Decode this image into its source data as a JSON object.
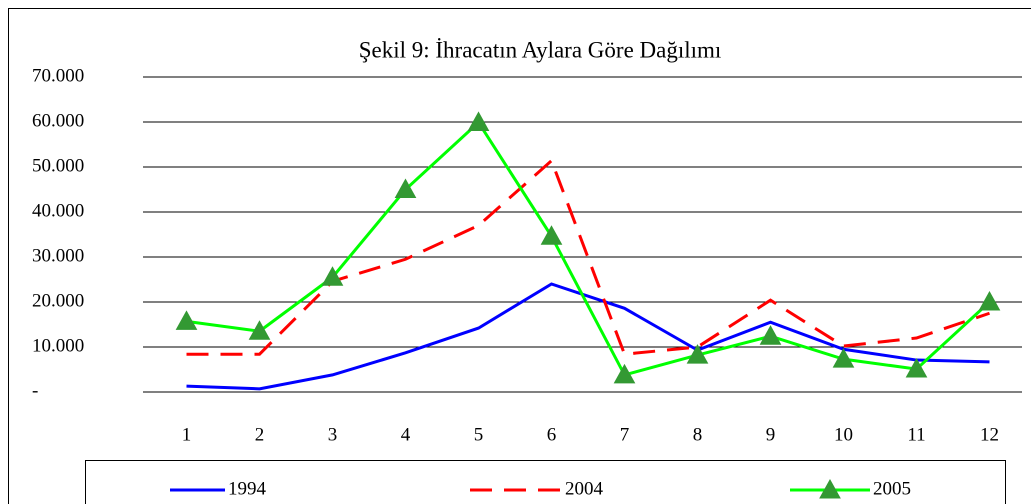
{
  "chart_data": {
    "type": "line",
    "title": "Şekil 9: İhracatın Aylara Göre Dağılımı",
    "categories": [
      "1",
      "2",
      "3",
      "4",
      "5",
      "6",
      "7",
      "8",
      "9",
      "10",
      "11",
      "12"
    ],
    "series": [
      {
        "name": "1994",
        "color": "#0000ff",
        "line_style": "solid",
        "marker": "none",
        "values": [
          1300,
          700,
          3800,
          8700,
          14200,
          24000,
          18600,
          9300,
          15500,
          9500,
          7100,
          6700
        ]
      },
      {
        "name": "2004",
        "color": "#ff0000",
        "line_style": "dashed",
        "marker": "none",
        "values": [
          8400,
          8400,
          24600,
          29500,
          37000,
          51400,
          8400,
          10000,
          20400,
          10200,
          12000,
          17500
        ]
      },
      {
        "name": "2005",
        "color": "#00ff00",
        "line_style": "solid",
        "marker": "triangle",
        "marker_color": "#339933",
        "values": [
          15700,
          13500,
          25500,
          45000,
          59900,
          34600,
          3800,
          8200,
          12400,
          7300,
          5100,
          20000
        ]
      }
    ],
    "ylim": [
      0,
      70000
    ],
    "yticks": [
      {
        "value": 0,
        "label": "-"
      },
      {
        "value": 10000,
        "label": "10.000"
      },
      {
        "value": 20000,
        "label": "20.000"
      },
      {
        "value": 30000,
        "label": "30.000"
      },
      {
        "value": 40000,
        "label": "40.000"
      },
      {
        "value": 50000,
        "label": "50.000"
      },
      {
        "value": 60000,
        "label": "60.000"
      },
      {
        "value": 70000,
        "label": "70.000"
      }
    ],
    "grid": true,
    "legend": "bottom"
  }
}
